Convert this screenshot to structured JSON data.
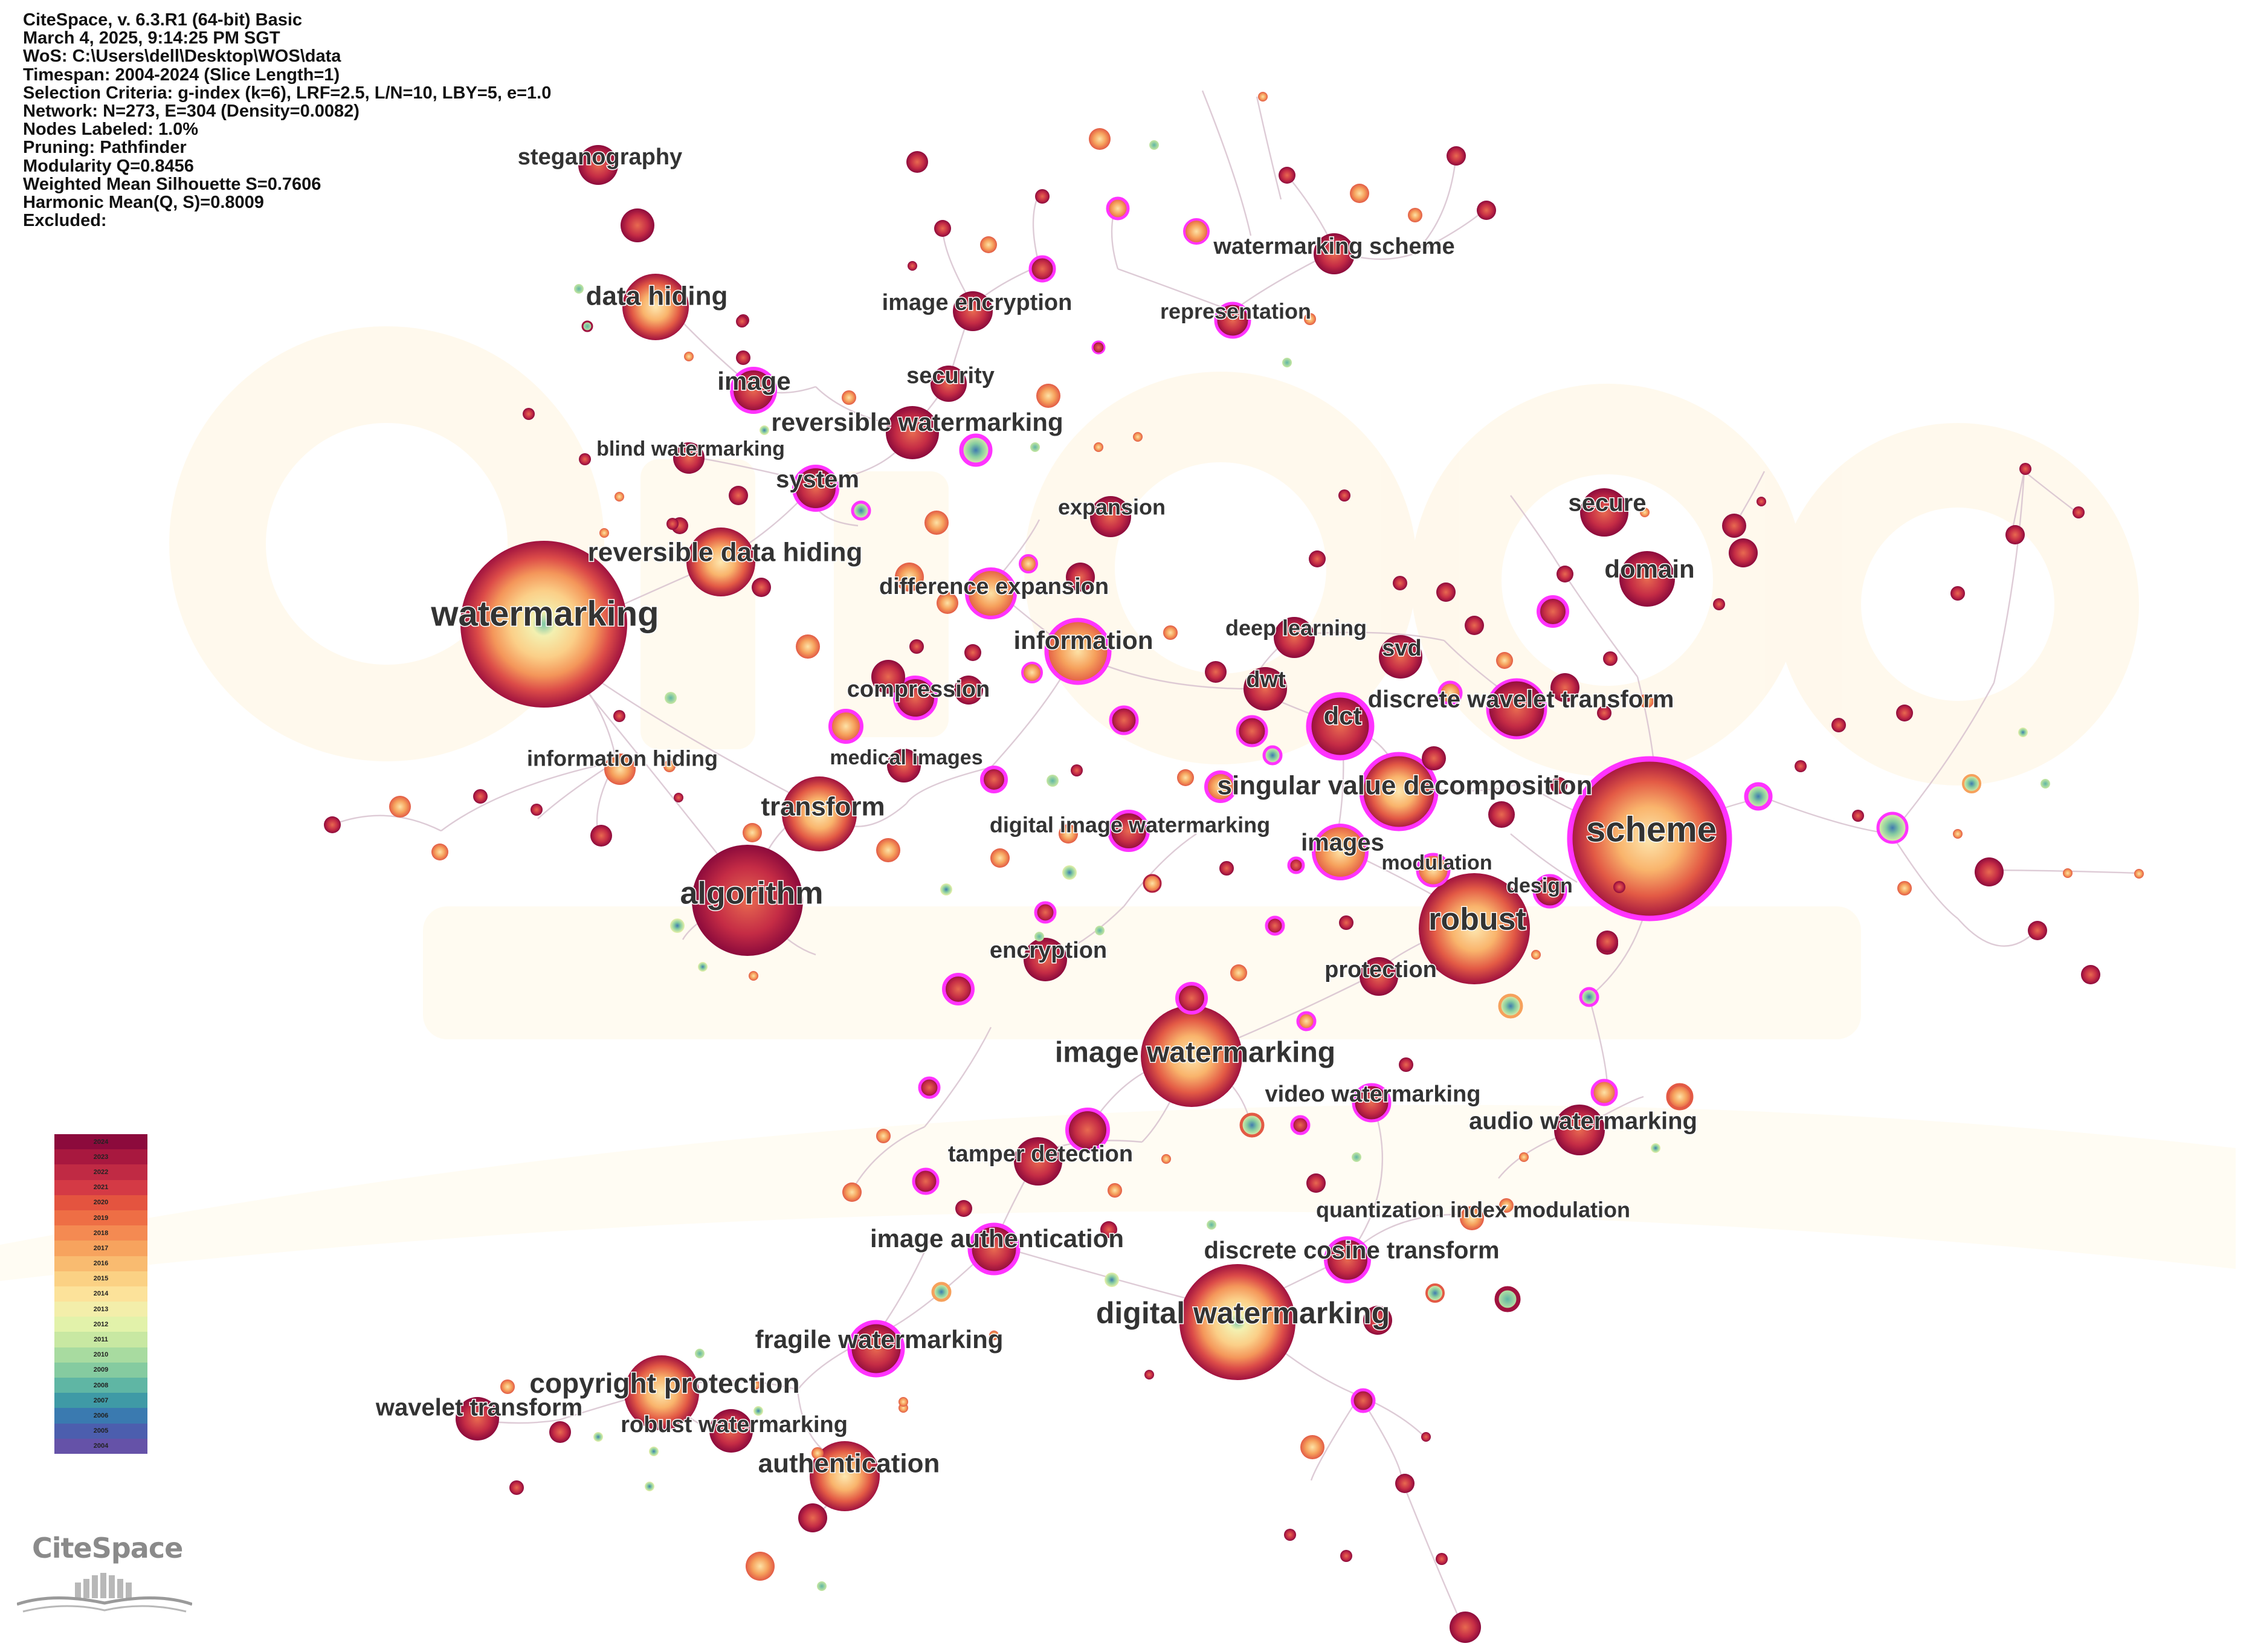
{
  "header": {
    "lines": [
      "CiteSpace, v. 6.3.R1 (64-bit) Basic",
      "March 4, 2025, 9:14:25 PM SGT",
      "WoS: C:\\Users\\dell\\Desktop\\WOS\\data",
      "Timespan: 2004-2024 (Slice Length=1)",
      "Selection Criteria: g-index (k=6), LRF=2.5, L/N=10, LBY=5, e=1.0",
      "Network: N=273, E=304 (Density=0.0082)",
      "Nodes Labeled: 1.0%",
      "Pruning: Pathfinder",
      "Modularity Q=0.8456",
      "Weighted Mean Silhouette S=0.7606",
      "Harmonic Mean(Q, S)=0.8009",
      "Excluded:"
    ]
  },
  "legend": {
    "years": [
      "2024",
      "2023",
      "2022",
      "2021",
      "2020",
      "2019",
      "2018",
      "2017",
      "2016",
      "2015",
      "2014",
      "2013",
      "2012",
      "2011",
      "2010",
      "2009",
      "2008",
      "2007",
      "2006",
      "2005",
      "2004"
    ],
    "colors": [
      "#8c0a3c",
      "#a8183f",
      "#c02a44",
      "#d43a45",
      "#e4543f",
      "#ee6e45",
      "#f48a52",
      "#f7a35e",
      "#f9bb70",
      "#fbd184",
      "#fce29a",
      "#f3eeaa",
      "#e2f2aa",
      "#c8e8a2",
      "#a8dba0",
      "#85cba0",
      "#5fb6a4",
      "#3f9aa6",
      "#3a7ab0",
      "#4c5eae",
      "#6552a8"
    ]
  },
  "logo": {
    "text": "CiteSpace"
  },
  "network": {
    "keywords": [
      {
        "id": "watermarking",
        "label": "watermarking",
        "size": "xl",
        "ring": false
      },
      {
        "id": "scheme",
        "label": "scheme",
        "size": "xl",
        "ring": true
      },
      {
        "id": "digital-watermarking",
        "label": "digital watermarking",
        "size": "l",
        "ring": false
      },
      {
        "id": "image-watermarking",
        "label": "image watermarking",
        "size": "l",
        "ring": false
      },
      {
        "id": "robust",
        "label": "robust",
        "size": "l",
        "ring": false
      },
      {
        "id": "algorithm",
        "label": "algorithm",
        "size": "l",
        "ring": false
      },
      {
        "id": "singular-value-decomposition",
        "label": "singular value decomposition",
        "size": "m",
        "ring": true
      },
      {
        "id": "transform",
        "label": "transform",
        "size": "m",
        "ring": false
      },
      {
        "id": "copyright-protection",
        "label": "copyright protection",
        "size": "m",
        "ring": false
      },
      {
        "id": "authentication",
        "label": "authentication",
        "size": "m",
        "ring": false
      },
      {
        "id": "reversible-data-hiding",
        "label": "reversible data hiding",
        "size": "m",
        "ring": false
      },
      {
        "id": "data-hiding",
        "label": "data hiding",
        "size": "m",
        "ring": false
      },
      {
        "id": "information",
        "label": "information",
        "size": "m",
        "ring": true
      },
      {
        "id": "dct",
        "label": "dct",
        "size": "m",
        "ring": true
      },
      {
        "id": "discrete-wavelet-transform",
        "label": "discrete wavelet transform",
        "size": "m",
        "ring": true
      },
      {
        "id": "domain",
        "label": "domain",
        "size": "m",
        "ring": false
      },
      {
        "id": "steganography",
        "label": "steganography",
        "size": "s",
        "ring": false
      },
      {
        "id": "image-encryption",
        "label": "image encryption",
        "size": "s",
        "ring": false
      },
      {
        "id": "watermarking-scheme",
        "label": "watermarking scheme",
        "size": "s",
        "ring": false
      },
      {
        "id": "representation",
        "label": "representation",
        "size": "s",
        "ring": true
      },
      {
        "id": "image",
        "label": "image",
        "size": "s",
        "ring": true
      },
      {
        "id": "security",
        "label": "security",
        "size": "s",
        "ring": false
      },
      {
        "id": "reversible-watermarking",
        "label": "reversible watermarking",
        "size": "s",
        "ring": false
      },
      {
        "id": "blind-watermarking",
        "label": "blind watermarking",
        "size": "s",
        "ring": false
      },
      {
        "id": "system",
        "label": "system",
        "size": "s",
        "ring": true
      },
      {
        "id": "expansion",
        "label": "expansion",
        "size": "s",
        "ring": false
      },
      {
        "id": "secure",
        "label": "secure",
        "size": "s",
        "ring": false
      },
      {
        "id": "difference-expansion",
        "label": "difference expansion",
        "size": "s",
        "ring": true
      },
      {
        "id": "deep-learning",
        "label": "deep learning",
        "size": "s",
        "ring": false
      },
      {
        "id": "svd",
        "label": "svd",
        "size": "s",
        "ring": false
      },
      {
        "id": "dwt",
        "label": "dwt",
        "size": "s",
        "ring": false
      },
      {
        "id": "compression",
        "label": "compression",
        "size": "s",
        "ring": true
      },
      {
        "id": "information-hiding",
        "label": "information hiding",
        "size": "s",
        "ring": false
      },
      {
        "id": "medical-images",
        "label": "medical images",
        "size": "s",
        "ring": false
      },
      {
        "id": "digital-image-watermarking",
        "label": "digital image watermarking",
        "size": "s",
        "ring": true
      },
      {
        "id": "images",
        "label": "images",
        "size": "s",
        "ring": true
      },
      {
        "id": "modulation",
        "label": "modulation",
        "size": "s",
        "ring": true
      },
      {
        "id": "design",
        "label": "design",
        "size": "s",
        "ring": true
      },
      {
        "id": "encryption",
        "label": "encryption",
        "size": "s",
        "ring": false
      },
      {
        "id": "protection",
        "label": "protection",
        "size": "s",
        "ring": false
      },
      {
        "id": "video-watermarking",
        "label": "video watermarking",
        "size": "s",
        "ring": true
      },
      {
        "id": "audio-watermarking",
        "label": "audio watermarking",
        "size": "s",
        "ring": false
      },
      {
        "id": "tamper-detection",
        "label": "tamper detection",
        "size": "s",
        "ring": false
      },
      {
        "id": "quantization-index-modulation",
        "label": "quantization index modulation",
        "size": "s",
        "ring": false
      },
      {
        "id": "image-authentication",
        "label": "image authentication",
        "size": "s",
        "ring": true
      },
      {
        "id": "discrete-cosine-transform",
        "label": "discrete cosine transform",
        "size": "s",
        "ring": true
      },
      {
        "id": "fragile-watermarking",
        "label": "fragile watermarking",
        "size": "s",
        "ring": true
      },
      {
        "id": "wavelet-transform",
        "label": "wavelet transform",
        "size": "s",
        "ring": false
      },
      {
        "id": "robust-watermarking",
        "label": "robust watermarking",
        "size": "s",
        "ring": false
      }
    ]
  }
}
